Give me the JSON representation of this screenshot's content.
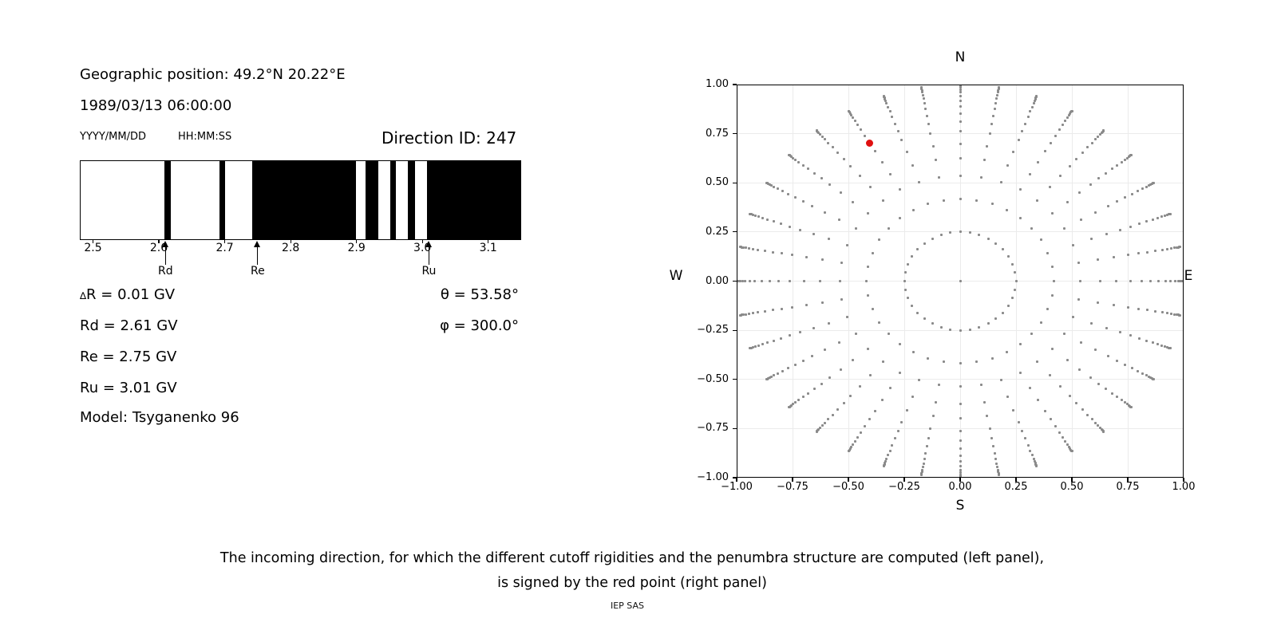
{
  "left_panel": {
    "geo_position": "Geographic position: 49.2°N 20.22°E",
    "datetime": "1989/03/13 06:00:00",
    "date_format_label": "YYYY/MM/DD",
    "time_format_label": "HH:MM:SS",
    "direction_id": "Direction ID: 247",
    "params": {
      "delta_sym": "∆",
      "delta_rest": "R = 0.01 GV",
      "rd": "Rd = 2.61 GV",
      "re": "Re = 2.75 GV",
      "ru": "Ru = 3.01 GV",
      "model": "Model: Tsyganenko 96",
      "theta": "θ = 53.58°",
      "phi": "φ = 300.0°"
    }
  },
  "caption": {
    "line1": "The incoming direction, for which the different cutoff rigidities and the penumbra structure are computed (left panel),",
    "line2": "is signed by the red point (right panel)",
    "credit": "IEP SAS"
  },
  "chart_data": [
    {
      "id": "penumbra-structure",
      "type": "barcode",
      "description": "Cosmic ray penumbra: white = allowed rigidities, black = forbidden rigidities",
      "x_unit": "GV",
      "xlim": [
        2.48,
        3.15
      ],
      "xticks": [
        2.5,
        2.6,
        2.7,
        2.8,
        2.9,
        3.0,
        3.1
      ],
      "xtick_labels": [
        "2.5",
        "2.6",
        "2.7",
        "2.8",
        "2.9",
        "3.0",
        "3.1"
      ],
      "forbidden_intervals_gv": [
        [
          2.608,
          2.618
        ],
        [
          2.691,
          2.7
        ],
        [
          2.741,
          2.9
        ],
        [
          2.914,
          2.934
        ],
        [
          2.952,
          2.96
        ],
        [
          2.978,
          2.99
        ],
        [
          3.008,
          3.15
        ]
      ],
      "allowed_color": "#ffffff",
      "forbidden_color": "#000000",
      "markers": [
        {
          "label": "Rd",
          "gv": 2.61
        },
        {
          "label": "Re",
          "gv": 2.75
        },
        {
          "label": "Ru",
          "gv": 3.01
        }
      ]
    },
    {
      "id": "direction-grid",
      "type": "scatter",
      "description": "Grid of incoming directions (x = sin(theta)sin(az), y = sin(theta)cos(az)); red point marks the selected direction",
      "xlim": [
        -1,
        1
      ],
      "ylim": [
        -1,
        1
      ],
      "grid": true,
      "xtick_values": [
        -1,
        -0.75,
        -0.5,
        -0.25,
        0,
        0.25,
        0.5,
        0.75,
        1
      ],
      "xtick_labels": [
        "−1.00",
        "−0.75",
        "−0.50",
        "−0.25",
        "0.00",
        "0.25",
        "0.50",
        "0.75",
        "1.00"
      ],
      "ytick_values": [
        1,
        0.75,
        0.5,
        0.25,
        0,
        -0.25,
        -0.5,
        -0.75,
        -1
      ],
      "ytick_labels": [
        "1.00",
        "0.75",
        "0.50",
        "0.25",
        "0.00",
        "−0.25",
        "−0.50",
        "−0.75",
        "−1.00"
      ],
      "compass": {
        "north": "N",
        "south": "S",
        "west": "W",
        "east": "E"
      },
      "dot_color": "#8a8a8a",
      "azimuth_start_deg": 0,
      "azimuth_step_deg": 10,
      "azimuth_count": 36,
      "ray_radii": [
        0.25,
        0.418,
        0.537,
        0.626,
        0.698,
        0.763,
        0.811,
        0.852,
        0.888,
        0.918,
        0.942,
        0.961,
        0.975,
        0.985,
        0.992,
        0.997,
        1.0
      ],
      "center_dot": [
        0,
        0
      ],
      "red_point": {
        "x": -0.406,
        "y": 0.701,
        "theta_deg": 53.58,
        "phi_deg": 300.0,
        "color": "#e01010"
      }
    }
  ]
}
